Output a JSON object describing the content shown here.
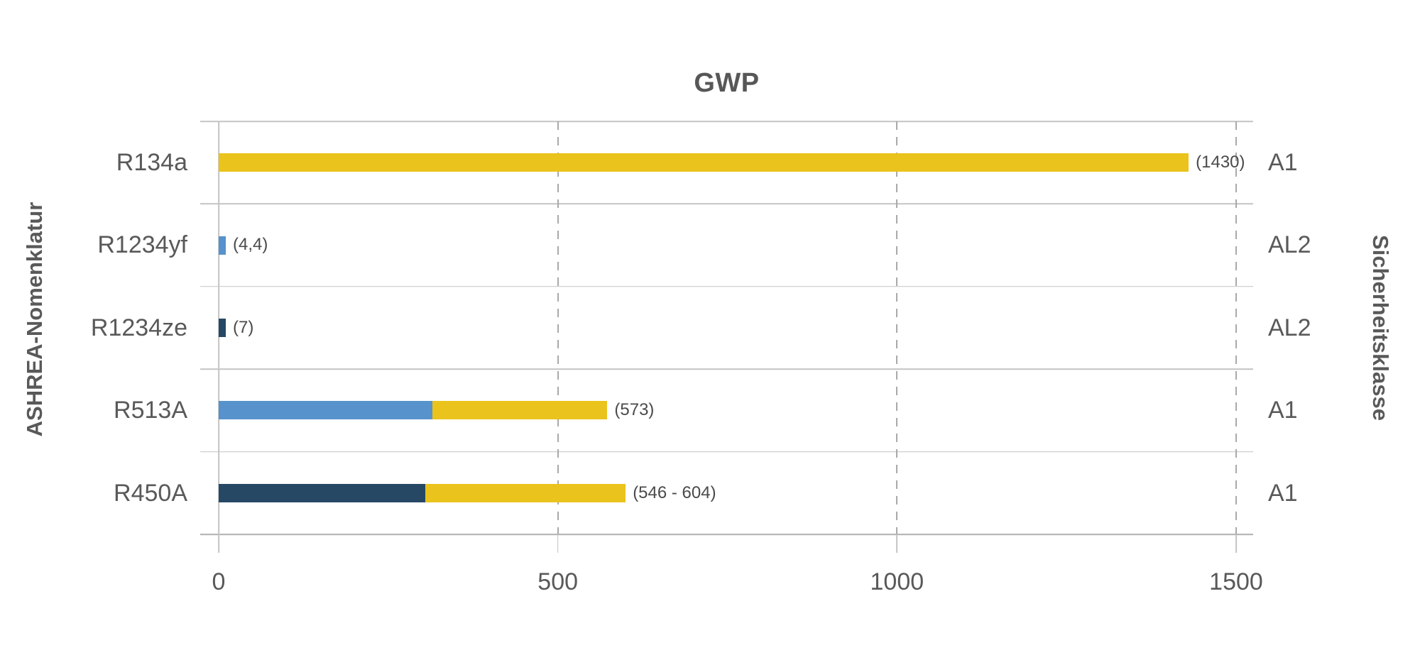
{
  "chart_data": {
    "type": "bar",
    "orientation": "horizontal",
    "title": "GWP",
    "y_axis_left_label": "ASHREA-Nomenklatur",
    "y_axis_right_label": "Sicherheitsklasse",
    "x_axis": {
      "min": 0,
      "max": 1500,
      "tick_values": [
        0,
        500,
        1000,
        1500
      ],
      "tick_labels": [
        "0",
        "500",
        "1000",
        "1500"
      ],
      "gridlines": "dashed-vertical"
    },
    "legend": "none",
    "colors": {
      "yellow": "#EAC31C",
      "light_blue": "#5792CC",
      "dark_blue": "#264864",
      "grid": "#C4C4C4",
      "text": "#595959"
    },
    "rows": [
      {
        "category": "R134a",
        "safety_class": "A1",
        "value_label": "(1430)",
        "total": 1430,
        "segments": [
          {
            "color": "yellow",
            "value": 1430
          }
        ]
      },
      {
        "category": "R1234yf",
        "safety_class": "AL2",
        "value_label": "(4,4)",
        "total": 4.4,
        "segments": [
          {
            "color": "light_blue",
            "value": 4.4
          }
        ]
      },
      {
        "category": "R1234ze",
        "safety_class": "AL2",
        "value_label": "(7)",
        "total": 7,
        "segments": [
          {
            "color": "dark_blue",
            "value": 7
          }
        ]
      },
      {
        "category": "R513A",
        "safety_class": "A1",
        "value_label": "(573)",
        "total": 573,
        "segments": [
          {
            "color": "light_blue",
            "value": 315
          },
          {
            "color": "yellow",
            "value": 258
          }
        ]
      },
      {
        "category": "R450A",
        "safety_class": "A1",
        "value_label": "(546 - 604)",
        "total": 600,
        "segments": [
          {
            "color": "dark_blue",
            "value": 305
          },
          {
            "color": "yellow",
            "value": 295
          }
        ]
      }
    ]
  }
}
